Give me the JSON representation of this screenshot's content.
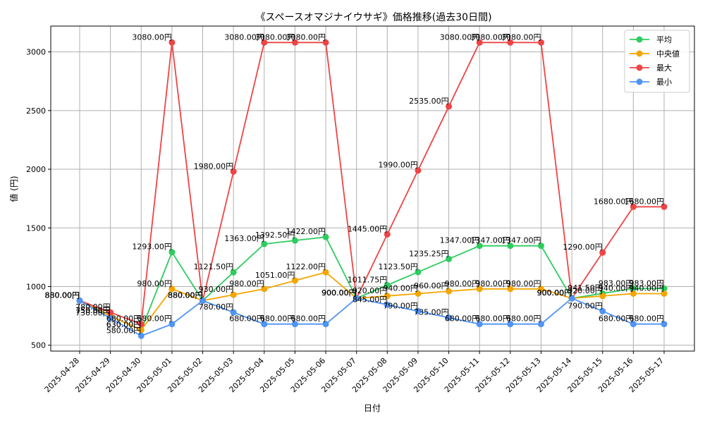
{
  "chart_data": {
    "type": "line",
    "title": "《スペースオマジナイウサギ》価格推移(過去30日間)",
    "xlabel": "日付",
    "ylabel": "値 (円)",
    "ylim": [
      450,
      3220
    ],
    "yticks": [
      500,
      1000,
      1500,
      2000,
      2500,
      3000
    ],
    "grid": true,
    "legend": "top-right",
    "label_suffix": "円",
    "categories": [
      "2025-04-28",
      "2025-04-29",
      "2025-04-30",
      "2025-05-01",
      "2025-05-02",
      "2025-05-03",
      "2025-05-04",
      "2025-05-05",
      "2025-05-06",
      "2025-05-07",
      "2025-05-08",
      "2025-05-09",
      "2025-05-10",
      "2025-05-11",
      "2025-05-12",
      "2025-05-13",
      "2025-05-14",
      "2025-05-15",
      "2025-05-16",
      "2025-05-17"
    ],
    "series": [
      {
        "name": "平均",
        "color": "#2ecc5f",
        "values": [
          880,
          750,
          630,
          1293,
          880,
          1121.5,
          1363,
          1392.5,
          1422,
          900,
          1011.75,
          1123.5,
          1235.25,
          1347,
          1347,
          1347,
          900,
          941.5,
          983,
          983
        ]
      },
      {
        "name": "中央値",
        "color": "#f5a500",
        "values": [
          880,
          750,
          630,
          980,
          880,
          930,
          980,
          1051,
          1122,
          900,
          920,
          940,
          960,
          980,
          980,
          980,
          900,
          920,
          940,
          940
        ]
      },
      {
        "name": "最大",
        "color": "#ef4444",
        "values": [
          880,
          780,
          680,
          3080,
          880,
          1980,
          3080,
          3080,
          3080,
          900,
          1445,
          1990,
          2535,
          3080,
          3080,
          3080,
          900,
          1290,
          1680,
          1680
        ]
      },
      {
        "name": "最小",
        "color": "#4f94f5",
        "values": [
          880,
          730,
          580,
          680,
          880,
          780,
          680,
          680,
          680,
          900,
          845,
          790,
          735,
          680,
          680,
          680,
          900,
          790,
          680,
          680
        ]
      }
    ]
  }
}
